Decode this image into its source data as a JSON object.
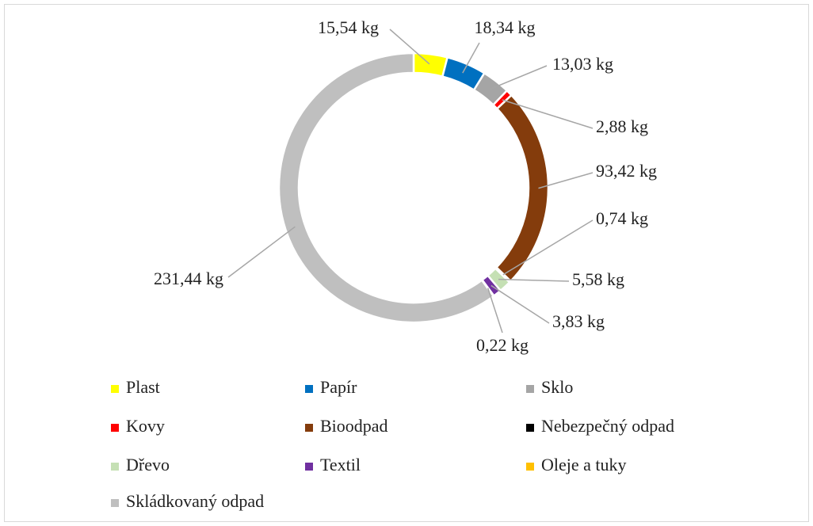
{
  "chart_data": {
    "type": "donut",
    "categories": [
      "Plast",
      "Papír",
      "Sklo",
      "Kovy",
      "Bioodpad",
      "Nebezpečný odpad",
      "Dřevo",
      "Textil",
      "Oleje a tuky",
      "Skládkovaný odpad"
    ],
    "values": [
      15.54,
      18.34,
      13.03,
      2.88,
      93.42,
      0.74,
      5.58,
      3.83,
      0.22,
      231.44
    ],
    "value_labels": [
      "15,54 kg",
      "18,34 kg",
      "13,03 kg",
      "2,88 kg",
      "93,42 kg",
      "0,74 kg",
      "5,58 kg",
      "3,83 kg",
      "0,22 kg",
      "231,44 kg"
    ],
    "colors": [
      "#ffff00",
      "#0070c0",
      "#a5a5a5",
      "#ff0000",
      "#843c0c",
      "#000000",
      "#c5e0b4",
      "#7030a0",
      "#ffc000",
      "#bfbfbf"
    ],
    "legend": "bottom"
  }
}
